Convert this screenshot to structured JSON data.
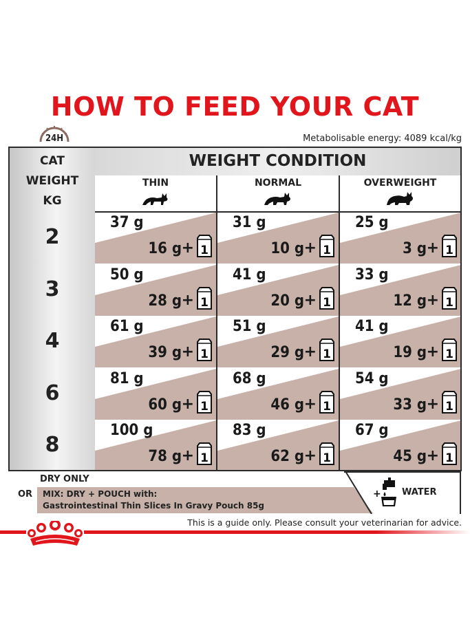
{
  "title": "HOW TO FEED YOUR CAT",
  "clock_label": "24H",
  "energy": "Metabolisable energy: 4089 kcal/kg",
  "weight_header_lines": [
    "CAT",
    "WEIGHT",
    "KG"
  ],
  "condition_header": "WEIGHT CONDITION",
  "conditions": [
    "THIN",
    "NORMAL",
    "OVERWEIGHT"
  ],
  "pouch_count": "1",
  "plus": "+",
  "rows": [
    {
      "kg": "2",
      "cells": [
        {
          "dry": "37 g",
          "wet": "16 g"
        },
        {
          "dry": "31 g",
          "wet": "10 g"
        },
        {
          "dry": "25 g",
          "wet": "3 g"
        }
      ]
    },
    {
      "kg": "3",
      "cells": [
        {
          "dry": "50 g",
          "wet": "28 g"
        },
        {
          "dry": "41 g",
          "wet": "20 g"
        },
        {
          "dry": "33 g",
          "wet": "12 g"
        }
      ]
    },
    {
      "kg": "4",
      "cells": [
        {
          "dry": "61 g",
          "wet": "39 g"
        },
        {
          "dry": "51 g",
          "wet": "29 g"
        },
        {
          "dry": "41 g",
          "wet": "19 g"
        }
      ]
    },
    {
      "kg": "6",
      "cells": [
        {
          "dry": "81 g",
          "wet": "60 g"
        },
        {
          "dry": "68 g",
          "wet": "46 g"
        },
        {
          "dry": "54 g",
          "wet": "33 g"
        }
      ]
    },
    {
      "kg": "8",
      "cells": [
        {
          "dry": "100 g",
          "wet": "78 g"
        },
        {
          "dry": "83 g",
          "wet": "62 g"
        },
        {
          "dry": "67 g",
          "wet": "45 g"
        }
      ]
    }
  ],
  "legend": {
    "dry_only": "DRY ONLY",
    "or": "OR",
    "mix_line1": "MIX: DRY + POUCH with:",
    "mix_line2": "Gastrointestinal Thin Slices In Gravy Pouch 85g",
    "water": "WATER",
    "water_plus": "+"
  },
  "disclaimer": "This is a guide only. Please consult your veterinarian for advice.",
  "colors": {
    "brand_red": "#e1161d",
    "mix_band": "#c7b1a8",
    "border": "#2a2a2a"
  },
  "icons": [
    "clock-icon",
    "cat-icon",
    "pouch-icon",
    "water-tap-icon",
    "royal-canin-crown-logo"
  ]
}
